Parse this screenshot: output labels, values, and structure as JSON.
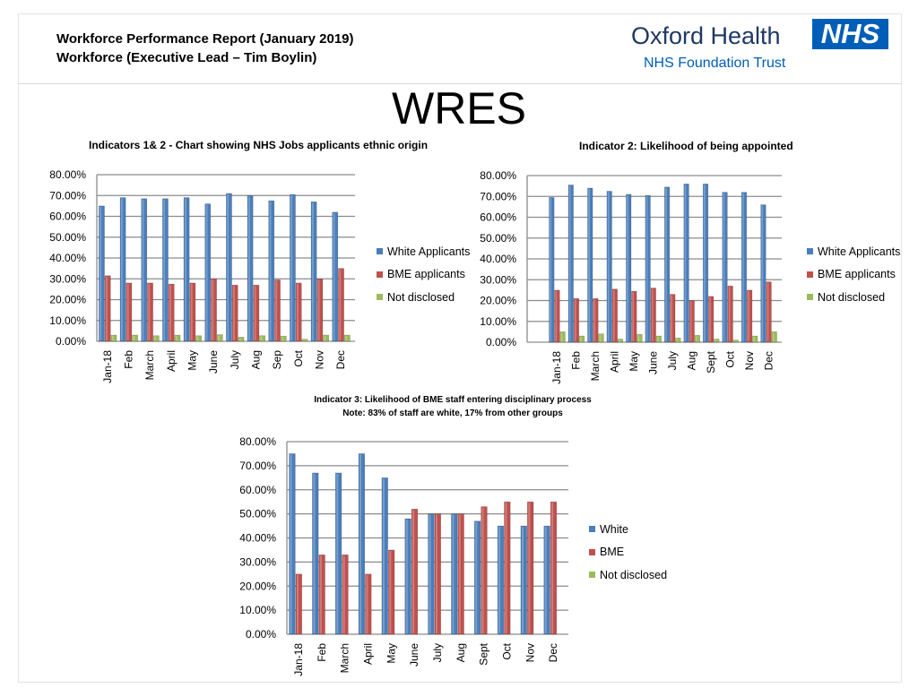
{
  "header": {
    "line1": "Workforce Performance Report (January 2019)",
    "line2": "Workforce (Executive Lead – Tim Boylin)",
    "logo_name": "Oxford Health",
    "logo_badge": "NHS",
    "logo_sub": "NHS Foundation Trust"
  },
  "page_title": "WRES",
  "colors": {
    "white": "#4a7ebb",
    "bme": "#c0504d",
    "nd": "#9bbb59"
  },
  "chart_data": [
    {
      "type": "bar",
      "title": "Indicators 1& 2 - Chart showing NHS Jobs applicants ethnic origin",
      "ylim": [
        0,
        80
      ],
      "yticks": [
        "0.00%",
        "10.00%",
        "20.00%",
        "30.00%",
        "40.00%",
        "50.00%",
        "60.00%",
        "70.00%",
        "80.00%"
      ],
      "grid": true,
      "legend": "right",
      "categories": [
        "Jan-18",
        "Feb",
        "March",
        "April",
        "May",
        "June",
        "July",
        "Aug",
        "Sep",
        "Oct",
        "Nov",
        "Dec"
      ],
      "series": [
        {
          "name": "White Applicants",
          "values": [
            65,
            69,
            68.5,
            68.5,
            69,
            66,
            71,
            70,
            67.5,
            70.5,
            67,
            62
          ]
        },
        {
          "name": "BME applicants",
          "values": [
            31.5,
            28,
            28,
            27.5,
            28,
            30,
            27,
            27,
            29.5,
            28,
            30,
            35
          ]
        },
        {
          "name": "Not disclosed",
          "values": [
            3,
            3,
            2.7,
            3,
            2.7,
            3.2,
            2,
            2.7,
            2.5,
            1,
            3,
            3
          ]
        }
      ]
    },
    {
      "type": "bar",
      "title": "Indicator 2: Likelihood of being appointed",
      "ylim": [
        0,
        80
      ],
      "yticks": [
        "0.00%",
        "10.00%",
        "20.00%",
        "30.00%",
        "40.00%",
        "50.00%",
        "60.00%",
        "70.00%",
        "80.00%"
      ],
      "grid": true,
      "legend": "right",
      "categories": [
        "Jan-18",
        "Feb",
        "March",
        "April",
        "May",
        "June",
        "July",
        "Aug",
        "Sept",
        "Oct",
        "Nov",
        "Dec"
      ],
      "series": [
        {
          "name": "White Applicants",
          "values": [
            69.5,
            75.5,
            74,
            72.5,
            71,
            70.5,
            74.5,
            76,
            76,
            72,
            72,
            66
          ]
        },
        {
          "name": "BME applicants",
          "values": [
            25,
            21,
            21,
            25.5,
            24.5,
            26,
            23,
            20,
            22,
            27,
            25,
            29
          ]
        },
        {
          "name": "Not disclosed",
          "values": [
            5,
            3,
            4,
            1.5,
            3.8,
            3,
            2,
            3.3,
            1.5,
            1,
            3,
            5
          ]
        }
      ]
    },
    {
      "type": "bar",
      "title": "Indicator 3: Likelihood of BME staff entering disciplinary process",
      "subtitle": "Note: 83% of staff are white, 17% from other groups",
      "ylim": [
        0,
        80
      ],
      "yticks": [
        "0.00%",
        "10.00%",
        "20.00%",
        "30.00%",
        "40.00%",
        "50.00%",
        "60.00%",
        "70.00%",
        "80.00%"
      ],
      "grid": true,
      "legend": "right",
      "categories": [
        "Jan-18",
        "Feb",
        "March",
        "April",
        "May",
        "June",
        "July",
        "Aug",
        "Sept",
        "Oct",
        "Nov",
        "Dec"
      ],
      "series": [
        {
          "name": "White",
          "values": [
            75,
            67,
            67,
            75,
            65,
            48,
            50,
            50,
            47,
            45,
            45,
            45
          ]
        },
        {
          "name": "BME",
          "values": [
            25,
            33,
            33,
            25,
            35,
            52,
            50,
            50,
            53,
            55,
            55,
            55
          ]
        },
        {
          "name": "Not disclosed",
          "values": [
            0,
            0,
            0,
            0,
            0,
            0,
            0,
            0,
            0,
            0,
            0,
            0
          ]
        }
      ]
    }
  ]
}
